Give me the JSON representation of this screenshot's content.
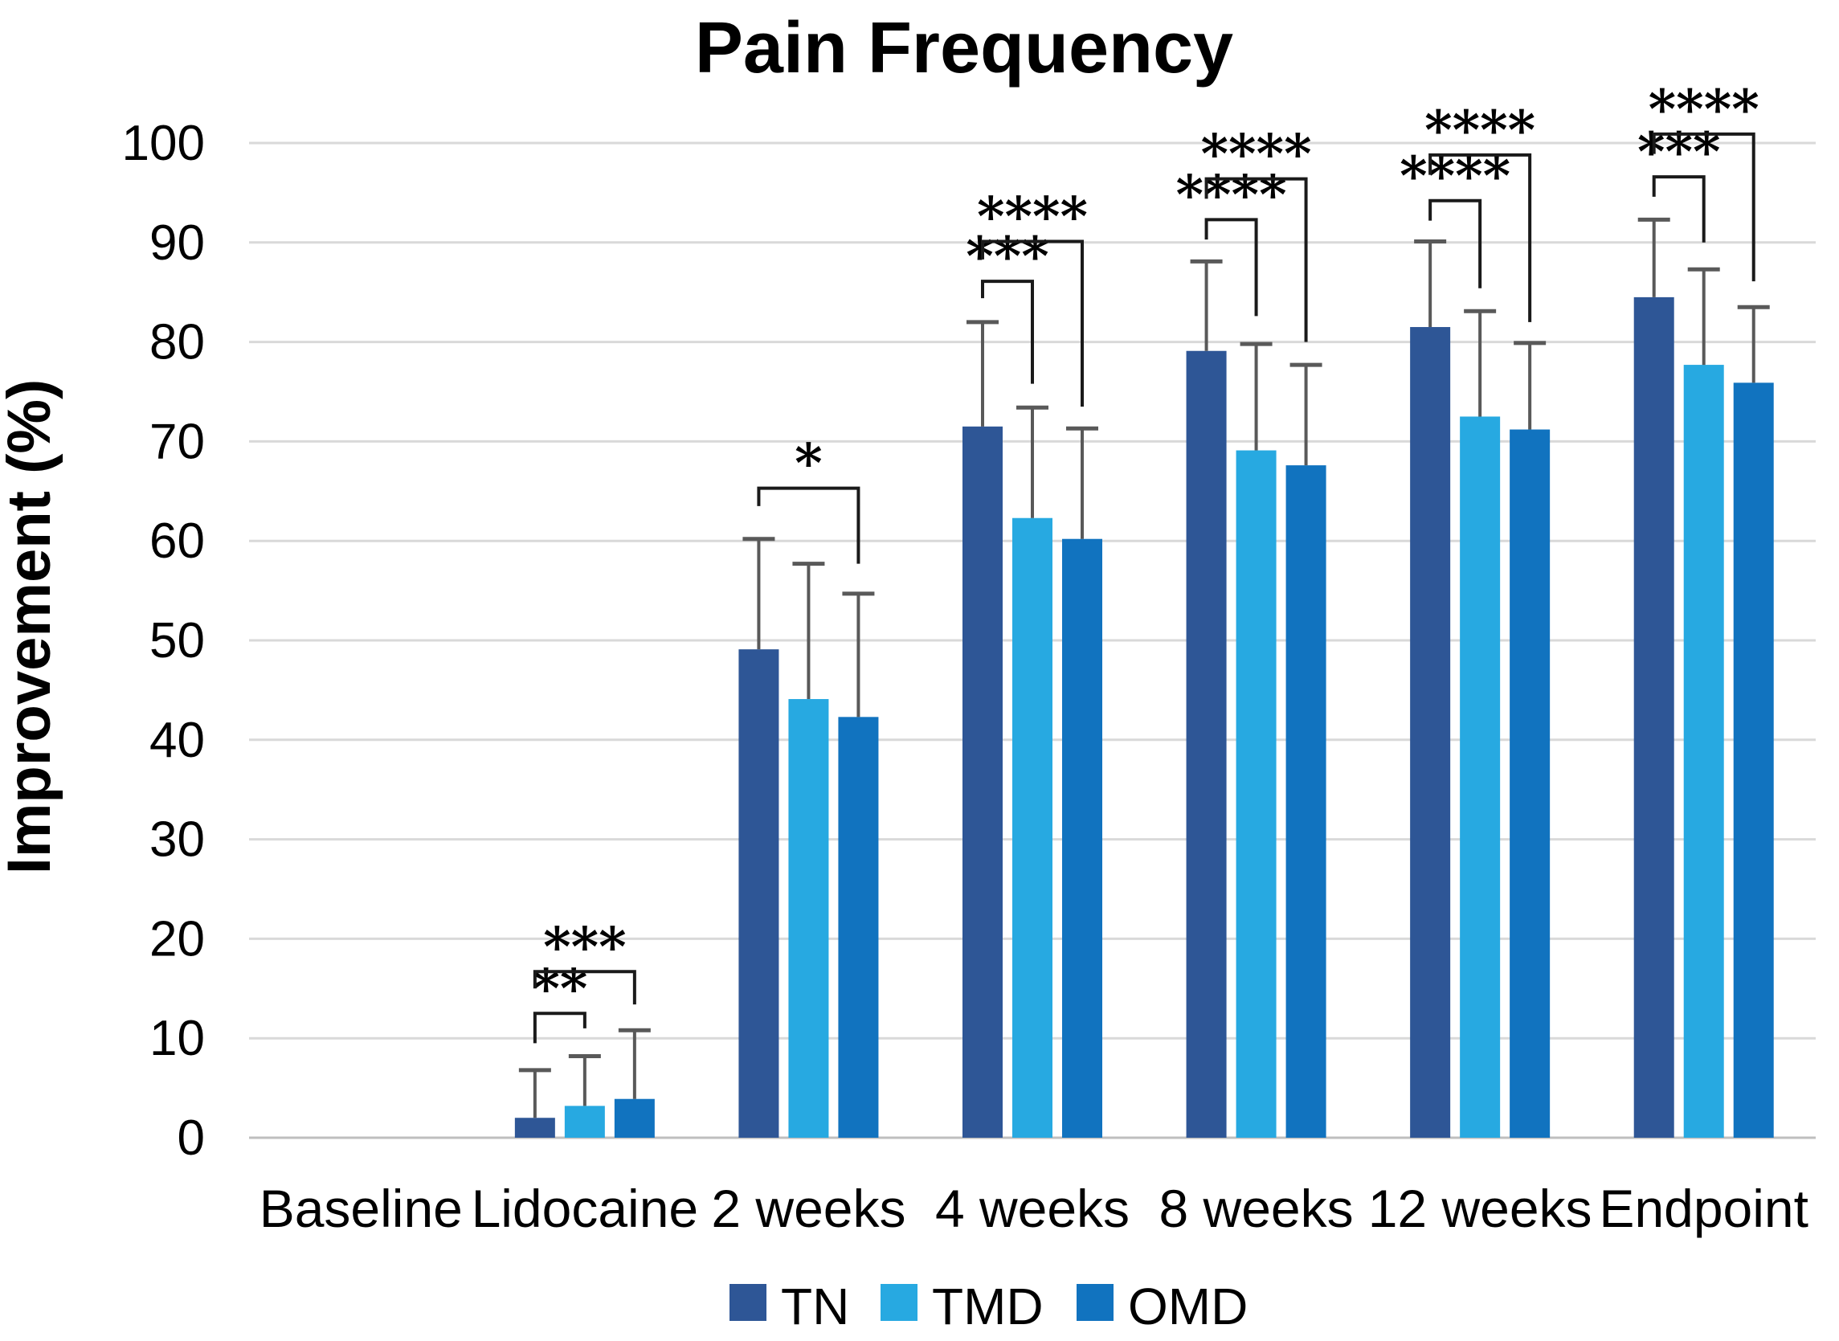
{
  "title": "Pain Frequency",
  "chart_data": {
    "type": "bar",
    "title": "Pain Frequency",
    "xlabel": "",
    "ylabel": "Improvement (%)",
    "ylim": [
      0,
      100
    ],
    "yticks": [
      0,
      10,
      20,
      30,
      40,
      50,
      60,
      70,
      80,
      90,
      100
    ],
    "grid": "horizontal-only",
    "gridline_color": "#d9d9d9",
    "axis_line_color": "#bfbfbf",
    "error_bar_color": "#595959",
    "bracket_color": "#1a1a1a",
    "legend_position": "bottom",
    "categories": [
      "Baseline",
      "Lidocaine",
      "2 weeks",
      "4 weeks",
      "8 weeks",
      "12 weeks",
      "Endpoint"
    ],
    "series": [
      {
        "name": "TN",
        "color": "#2e5696",
        "values": [
          0,
          2.0,
          49.1,
          71.5,
          79.1,
          81.5,
          84.5
        ],
        "errors_plus": [
          0,
          4.8,
          11.1,
          10.5,
          9.0,
          8.6,
          7.8
        ]
      },
      {
        "name": "TMD",
        "color": "#27a9e1",
        "values": [
          0,
          3.2,
          44.1,
          62.3,
          69.1,
          72.5,
          77.7
        ],
        "errors_plus": [
          0,
          5.0,
          13.6,
          11.1,
          10.7,
          10.6,
          9.6
        ]
      },
      {
        "name": "OMD",
        "color": "#1173bf",
        "values": [
          0,
          3.9,
          42.3,
          60.2,
          67.6,
          71.2,
          75.9
        ],
        "errors_plus": [
          0,
          6.9,
          12.4,
          11.1,
          10.1,
          8.7,
          7.6
        ]
      }
    ],
    "significance_brackets": [
      {
        "category": "Lidocaine",
        "from": "TN",
        "to": "TMD",
        "label": "**",
        "y": 12.5,
        "left_arm_end": 9.5,
        "right_arm_end": 11.0
      },
      {
        "category": "Lidocaine",
        "from": "TN",
        "to": "OMD",
        "label": "***",
        "y": 16.7,
        "left_arm_end": 15.0,
        "right_arm_end": 13.4
      },
      {
        "category": "2 weeks",
        "from": "TN",
        "to": "OMD",
        "label": "*",
        "y": 65.3,
        "left_arm_end": 63.5,
        "right_arm_end": 57.7
      },
      {
        "category": "4 weeks",
        "from": "TN",
        "to": "TMD",
        "label": "***",
        "y": 86.1,
        "left_arm_end": 84.4,
        "right_arm_end": 75.8
      },
      {
        "category": "4 weeks",
        "from": "TN",
        "to": "OMD",
        "label": "****",
        "y": 90.1,
        "left_arm_end": 88.3,
        "right_arm_end": 73.5
      },
      {
        "category": "8 weeks",
        "from": "TN",
        "to": "TMD",
        "label": "****",
        "y": 92.3,
        "left_arm_end": 90.3,
        "right_arm_end": 82.6
      },
      {
        "category": "8 weeks",
        "from": "TN",
        "to": "OMD",
        "label": "****",
        "y": 96.4,
        "left_arm_end": 94.4,
        "right_arm_end": 80.0
      },
      {
        "category": "12 weeks",
        "from": "TN",
        "to": "TMD",
        "label": "****",
        "y": 94.2,
        "left_arm_end": 92.2,
        "right_arm_end": 85.4
      },
      {
        "category": "12 weeks",
        "from": "TN",
        "to": "OMD",
        "label": "****",
        "y": 98.8,
        "left_arm_end": 96.8,
        "right_arm_end": 82.0
      },
      {
        "category": "Endpoint",
        "from": "TN",
        "to": "TMD",
        "label": "***",
        "y": 96.6,
        "left_arm_end": 94.6,
        "right_arm_end": 90.0
      },
      {
        "category": "Endpoint",
        "from": "TN",
        "to": "OMD",
        "label": "****",
        "y": 100.9,
        "left_arm_end": 98.9,
        "right_arm_end": 86.1
      }
    ]
  }
}
